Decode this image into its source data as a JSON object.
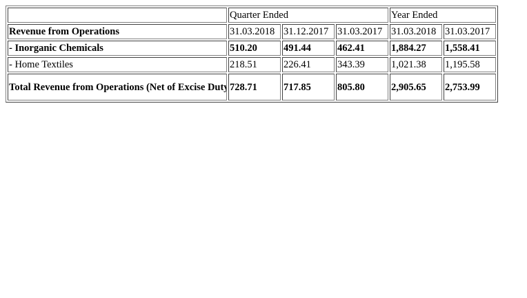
{
  "table": {
    "header": {
      "blank": "",
      "quarter_ended": "Quarter Ended",
      "year_ended": "Year Ended"
    },
    "dates_row": {
      "label": "Revenue from Operations",
      "dates": [
        "31.03.2018",
        "31.12.2017",
        "31.03.2017",
        "31.03.2018",
        "31.03.2017"
      ]
    },
    "rows": [
      {
        "label": "- Inorganic Chemicals",
        "values": [
          "510.20",
          "491.44",
          "462.41",
          "1,884.27",
          "1,558.41"
        ]
      },
      {
        "label": "- Home Textiles",
        "values": [
          "218.51",
          "226.41",
          "343.39",
          "1,021.38",
          "1,195.58"
        ]
      },
      {
        "label": "Total Revenue from Operations (Net of Excise Duty)",
        "values": [
          "728.71",
          "717.85",
          "805.80",
          "2,905.65",
          "2,753.99"
        ]
      }
    ]
  }
}
